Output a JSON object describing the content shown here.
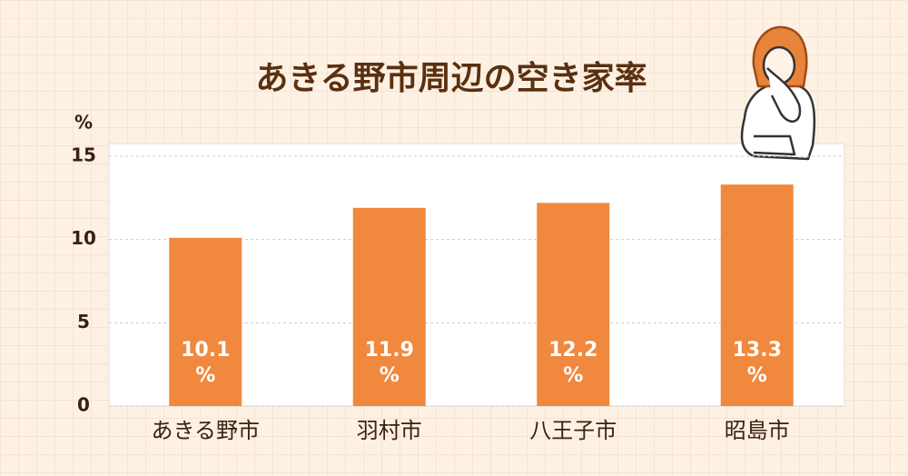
{
  "chart_data": {
    "type": "bar",
    "title": "あきる野市周辺の空き家率",
    "y_unit": "%",
    "categories": [
      "あきる野市",
      "羽村市",
      "八王子市",
      "昭島市"
    ],
    "values": [
      10.1,
      11.9,
      12.2,
      13.3
    ],
    "value_labels": [
      "10.1 %",
      "11.9 %",
      "12.2 %",
      "13.3 %"
    ],
    "color": "#f0883e",
    "ylim": [
      0,
      15
    ],
    "yticks": [
      0,
      5,
      10,
      15
    ],
    "grid": true
  }
}
